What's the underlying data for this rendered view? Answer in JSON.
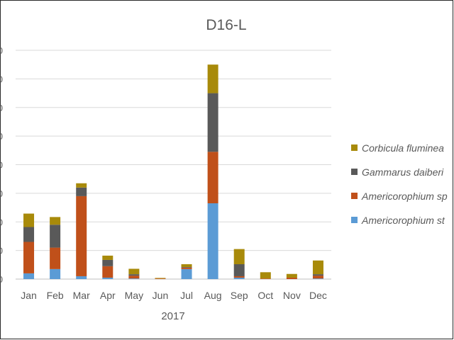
{
  "chart_data": {
    "type": "bar",
    "stacked": true,
    "title": "D16-L",
    "xlabel": "2017",
    "ylabel": "",
    "categories": [
      "Jan",
      "Feb",
      "Mar",
      "Apr",
      "May",
      "Jun",
      "Jul",
      "Aug",
      "Sep",
      "Oct",
      "Nov",
      "Dec"
    ],
    "y_tick_labels": [
      "0",
      "0",
      "0",
      "0",
      "0",
      "0",
      "0",
      "0",
      "0"
    ],
    "ylim": [
      0,
      8
    ],
    "grid": true,
    "legend_position": "right",
    "series": [
      {
        "name": "Americorophium st",
        "color": "#5B9BD5",
        "values": [
          0.2,
          0.35,
          0.1,
          0.05,
          0.02,
          0.0,
          0.35,
          2.65,
          0.05,
          0.0,
          0.0,
          0.02
        ]
      },
      {
        "name": "Americorophium sp",
        "color": "#C0501A",
        "values": [
          1.1,
          0.75,
          2.8,
          0.4,
          0.1,
          0.02,
          0.05,
          1.8,
          0.05,
          0.02,
          0.05,
          0.1
        ]
      },
      {
        "name": "Gammarus daiberi",
        "color": "#595959",
        "values": [
          0.52,
          0.8,
          0.3,
          0.22,
          0.05,
          0.0,
          0.02,
          2.05,
          0.42,
          0.0,
          0.0,
          0.05
        ]
      },
      {
        "name": "Corbicula fluminea",
        "color": "#A88A0A",
        "values": [
          0.47,
          0.27,
          0.15,
          0.15,
          0.19,
          0.02,
          0.1,
          1.0,
          0.53,
          0.22,
          0.13,
          0.48
        ]
      }
    ]
  },
  "legend_order": [
    3,
    2,
    1,
    0
  ]
}
